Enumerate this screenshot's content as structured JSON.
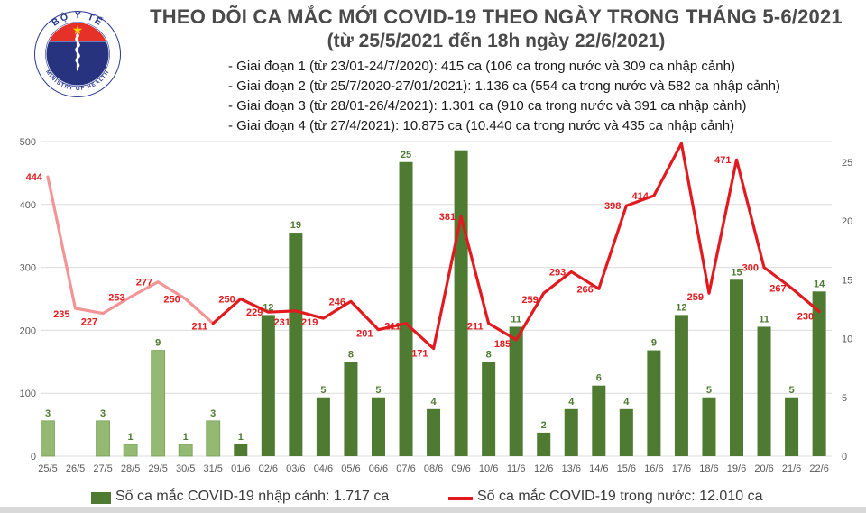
{
  "header": {
    "title": "THEO DÕI CA MẮC MỚI COVID-19 THEO NGÀY TRONG THÁNG 5-6/2021",
    "subtitle": "(từ 25/5/2021 đến 18h ngày 22/6/2021)",
    "bullets": [
      "- Giai đoạn 1 (từ 23/01-24/7/2020): 415 ca (106 ca trong nước và 309 ca nhập cảnh)",
      "- Giai đoạn 2 (từ 25/7/2020-27/01/2021): 1.136 ca (554 ca trong nước và 582 ca nhập cảnh)",
      "- Giai đoạn 3 (từ 28/01-26/4/2021): 1.301 ca (910 ca trong nước và 391 ca nhập cảnh)",
      "- Giai đoạn 4 (từ 27/4/2021): 10.875 ca (10.440 ca trong nước và 435 ca nhập cảnh)"
    ]
  },
  "logo": {
    "top_text": "BỘ Y TẾ",
    "bottom_text": "MINISTRY OF HEALTH"
  },
  "legend": {
    "bar_label": "Số ca mắc COVID-19 nhập cảnh: 1.717 ca",
    "line_label": "Số ca mắc COVID-19 trong nước: 12.010 ca"
  },
  "colors": {
    "bar_light": "#94b973",
    "bar_dark": "#4e7b31",
    "bar_label": "#4e7b31",
    "line_light": "#f39596",
    "line_dark": "#e11a1f",
    "line_label": "#e11a1f",
    "grid": "#dcdcdc",
    "axis_text": "#595959",
    "logo_red": "#e63128",
    "logo_navy": "#283380",
    "logo_star": "#ffd100"
  },
  "chart_data": {
    "type": "bar+line combo",
    "categories": [
      "25/5",
      "26/5",
      "27/5",
      "28/5",
      "29/5",
      "30/5",
      "31/5",
      "01/6",
      "02/6",
      "03/6",
      "04/6",
      "05/6",
      "06/6",
      "07/6",
      "08/6",
      "09/6",
      "10/6",
      "11/6",
      "12/6",
      "13/6",
      "14/6",
      "15/6",
      "16/6",
      "17/6",
      "18/6",
      "19/6",
      "20/6",
      "21/6",
      "22/6"
    ],
    "series": [
      {
        "name": "Số ca mắc COVID-19 nhập cảnh",
        "type": "bar",
        "axis": "right",
        "values": [
          3,
          0,
          3,
          1,
          9,
          1,
          3,
          1,
          12,
          19,
          5,
          8,
          5,
          25,
          4,
          26,
          8,
          11,
          2,
          4,
          6,
          4,
          9,
          12,
          5,
          15,
          11,
          5,
          14
        ],
        "labels": [
          "3",
          "",
          "3",
          "1",
          "9",
          "1",
          "3",
          "1",
          "12",
          "19",
          "5",
          "8",
          "5",
          "25",
          "4",
          "",
          "8",
          "11",
          "2",
          "4",
          "6",
          "4",
          "9",
          "12",
          "5",
          "15",
          "11",
          "5",
          "14"
        ]
      },
      {
        "name": "Số ca mắc COVID-19 trong nước",
        "type": "line",
        "axis": "left",
        "values": [
          444,
          235,
          227,
          253,
          277,
          250,
          211,
          250,
          229,
          231,
          219,
          246,
          201,
          211,
          171,
          381,
          211,
          185,
          259,
          293,
          266,
          398,
          414,
          497,
          259,
          471,
          300,
          267,
          230
        ],
        "labels": [
          "444",
          "235",
          "227",
          "253",
          "277",
          "250",
          "211",
          "250",
          "229",
          "231",
          "219",
          "246",
          "201",
          "211",
          "171",
          "381",
          "211",
          "185",
          "259",
          "293",
          "266",
          "398",
          "414",
          "",
          "259",
          "471",
          "300",
          "267",
          "230"
        ]
      }
    ],
    "may_point_count": 7,
    "left_axis": {
      "ticks": [
        0,
        100,
        200,
        300,
        400,
        500
      ],
      "range": [
        0,
        500
      ]
    },
    "right_axis": {
      "ticks": [
        0,
        5,
        10,
        15,
        20,
        25
      ],
      "range": [
        0,
        27
      ]
    },
    "grid": "horizontal",
    "legend_position": "bottom"
  }
}
